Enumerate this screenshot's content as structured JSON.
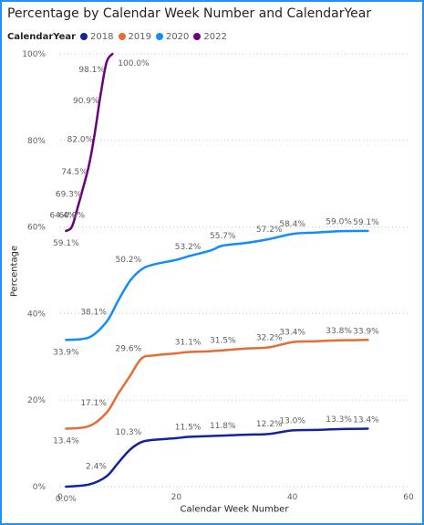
{
  "chart_data": {
    "type": "line",
    "title": "Percentage by Calendar Week Number and CalendarYear",
    "legend_title": "CalendarYear",
    "legend_position": "top-left",
    "xlabel": "Calendar Week Number",
    "ylabel": "Percentage",
    "xlim": [
      0,
      60
    ],
    "ylim": [
      0,
      100
    ],
    "xticks": [
      0,
      20,
      40,
      60
    ],
    "yticks": [
      0,
      20,
      40,
      60,
      80,
      100
    ],
    "ytick_labels": [
      "0%",
      "20%",
      "40%",
      "60%",
      "80%",
      "100%"
    ],
    "grid": "horizontal dotted",
    "series": [
      {
        "name": "2018",
        "color": "#12239e",
        "points": [
          [
            1,
            0.0
          ],
          [
            5,
            0.5
          ],
          [
            8,
            2.4
          ],
          [
            10,
            5.5
          ],
          [
            12,
            8.5
          ],
          [
            14,
            10.3
          ],
          [
            16,
            10.8
          ],
          [
            20,
            11.2
          ],
          [
            22,
            11.5
          ],
          [
            26,
            11.7
          ],
          [
            28,
            11.8
          ],
          [
            32,
            12.0
          ],
          [
            36,
            12.2
          ],
          [
            40,
            13.0
          ],
          [
            44,
            13.1
          ],
          [
            48,
            13.3
          ],
          [
            53,
            13.4
          ]
        ],
        "labels": [
          [
            1,
            0.0,
            "0.0%"
          ],
          [
            8,
            2.4,
            "2.4%"
          ],
          [
            14,
            10.3,
            "10.3%"
          ],
          [
            22,
            11.5,
            "11.5%"
          ],
          [
            28,
            11.8,
            "11.8%"
          ],
          [
            36,
            12.2,
            "12.2%"
          ],
          [
            40,
            13.0,
            "13.0%"
          ],
          [
            48,
            13.3,
            "13.3%"
          ],
          [
            53,
            13.4,
            "13.4%"
          ]
        ]
      },
      {
        "name": "2019",
        "color": "#e66c37",
        "points": [
          [
            1,
            13.4
          ],
          [
            5,
            14.0
          ],
          [
            8,
            17.1
          ],
          [
            10,
            21.5
          ],
          [
            12,
            25.5
          ],
          [
            14,
            29.6
          ],
          [
            16,
            30.3
          ],
          [
            20,
            30.8
          ],
          [
            22,
            31.1
          ],
          [
            26,
            31.3
          ],
          [
            28,
            31.5
          ],
          [
            32,
            31.9
          ],
          [
            36,
            32.2
          ],
          [
            40,
            33.4
          ],
          [
            44,
            33.6
          ],
          [
            48,
            33.8
          ],
          [
            53,
            33.9
          ]
        ],
        "labels": [
          [
            1,
            13.4,
            "13.4%"
          ],
          [
            8,
            17.1,
            "17.1%"
          ],
          [
            14,
            29.6,
            "29.6%"
          ],
          [
            22,
            31.1,
            "31.1%"
          ],
          [
            28,
            31.5,
            "31.5%"
          ],
          [
            36,
            32.2,
            "32.2%"
          ],
          [
            40,
            33.4,
            "33.4%"
          ],
          [
            48,
            33.8,
            "33.8%"
          ],
          [
            53,
            33.9,
            "33.9%"
          ]
        ]
      },
      {
        "name": "2020",
        "color": "#118dff",
        "points": [
          [
            1,
            33.9
          ],
          [
            5,
            34.5
          ],
          [
            8,
            38.1
          ],
          [
            10,
            43.0
          ],
          [
            12,
            47.5
          ],
          [
            14,
            50.2
          ],
          [
            16,
            51.3
          ],
          [
            20,
            52.4
          ],
          [
            22,
            53.2
          ],
          [
            26,
            54.6
          ],
          [
            28,
            55.7
          ],
          [
            32,
            56.3
          ],
          [
            36,
            57.2
          ],
          [
            40,
            58.4
          ],
          [
            44,
            58.7
          ],
          [
            48,
            59.0
          ],
          [
            53,
            59.1
          ]
        ],
        "labels": [
          [
            1,
            33.9,
            "33.9%"
          ],
          [
            8,
            38.1,
            "38.1%"
          ],
          [
            14,
            50.2,
            "50.2%"
          ],
          [
            22,
            53.2,
            "53.2%"
          ],
          [
            28,
            55.7,
            "55.7%"
          ],
          [
            36,
            57.2,
            "57.2%"
          ],
          [
            40,
            58.4,
            "58.4%"
          ],
          [
            48,
            59.0,
            "59.0%"
          ],
          [
            53,
            59.1,
            "59.1%"
          ]
        ]
      },
      {
        "name": "2022",
        "color": "#6b007b",
        "points": [
          [
            1,
            59.1
          ],
          [
            2,
            60.0
          ],
          [
            3,
            64.4
          ],
          [
            4,
            69.3
          ],
          [
            5,
            74.5
          ],
          [
            6,
            82.0
          ],
          [
            7,
            90.9
          ],
          [
            8,
            98.1
          ],
          [
            9,
            100.0
          ]
        ],
        "labels": [
          [
            1,
            59.1,
            "59.1%"
          ],
          [
            2,
            60.0,
            "60.0%"
          ],
          [
            3,
            64.4,
            "64.4%"
          ],
          [
            4,
            69.3,
            "69.3%"
          ],
          [
            5,
            74.5,
            "74.5%"
          ],
          [
            6,
            82.0,
            "82.0%"
          ],
          [
            7,
            90.9,
            "90.9%"
          ],
          [
            8,
            98.1,
            "98.1%"
          ],
          [
            9,
            100.0,
            "100.0%"
          ]
        ]
      }
    ]
  }
}
